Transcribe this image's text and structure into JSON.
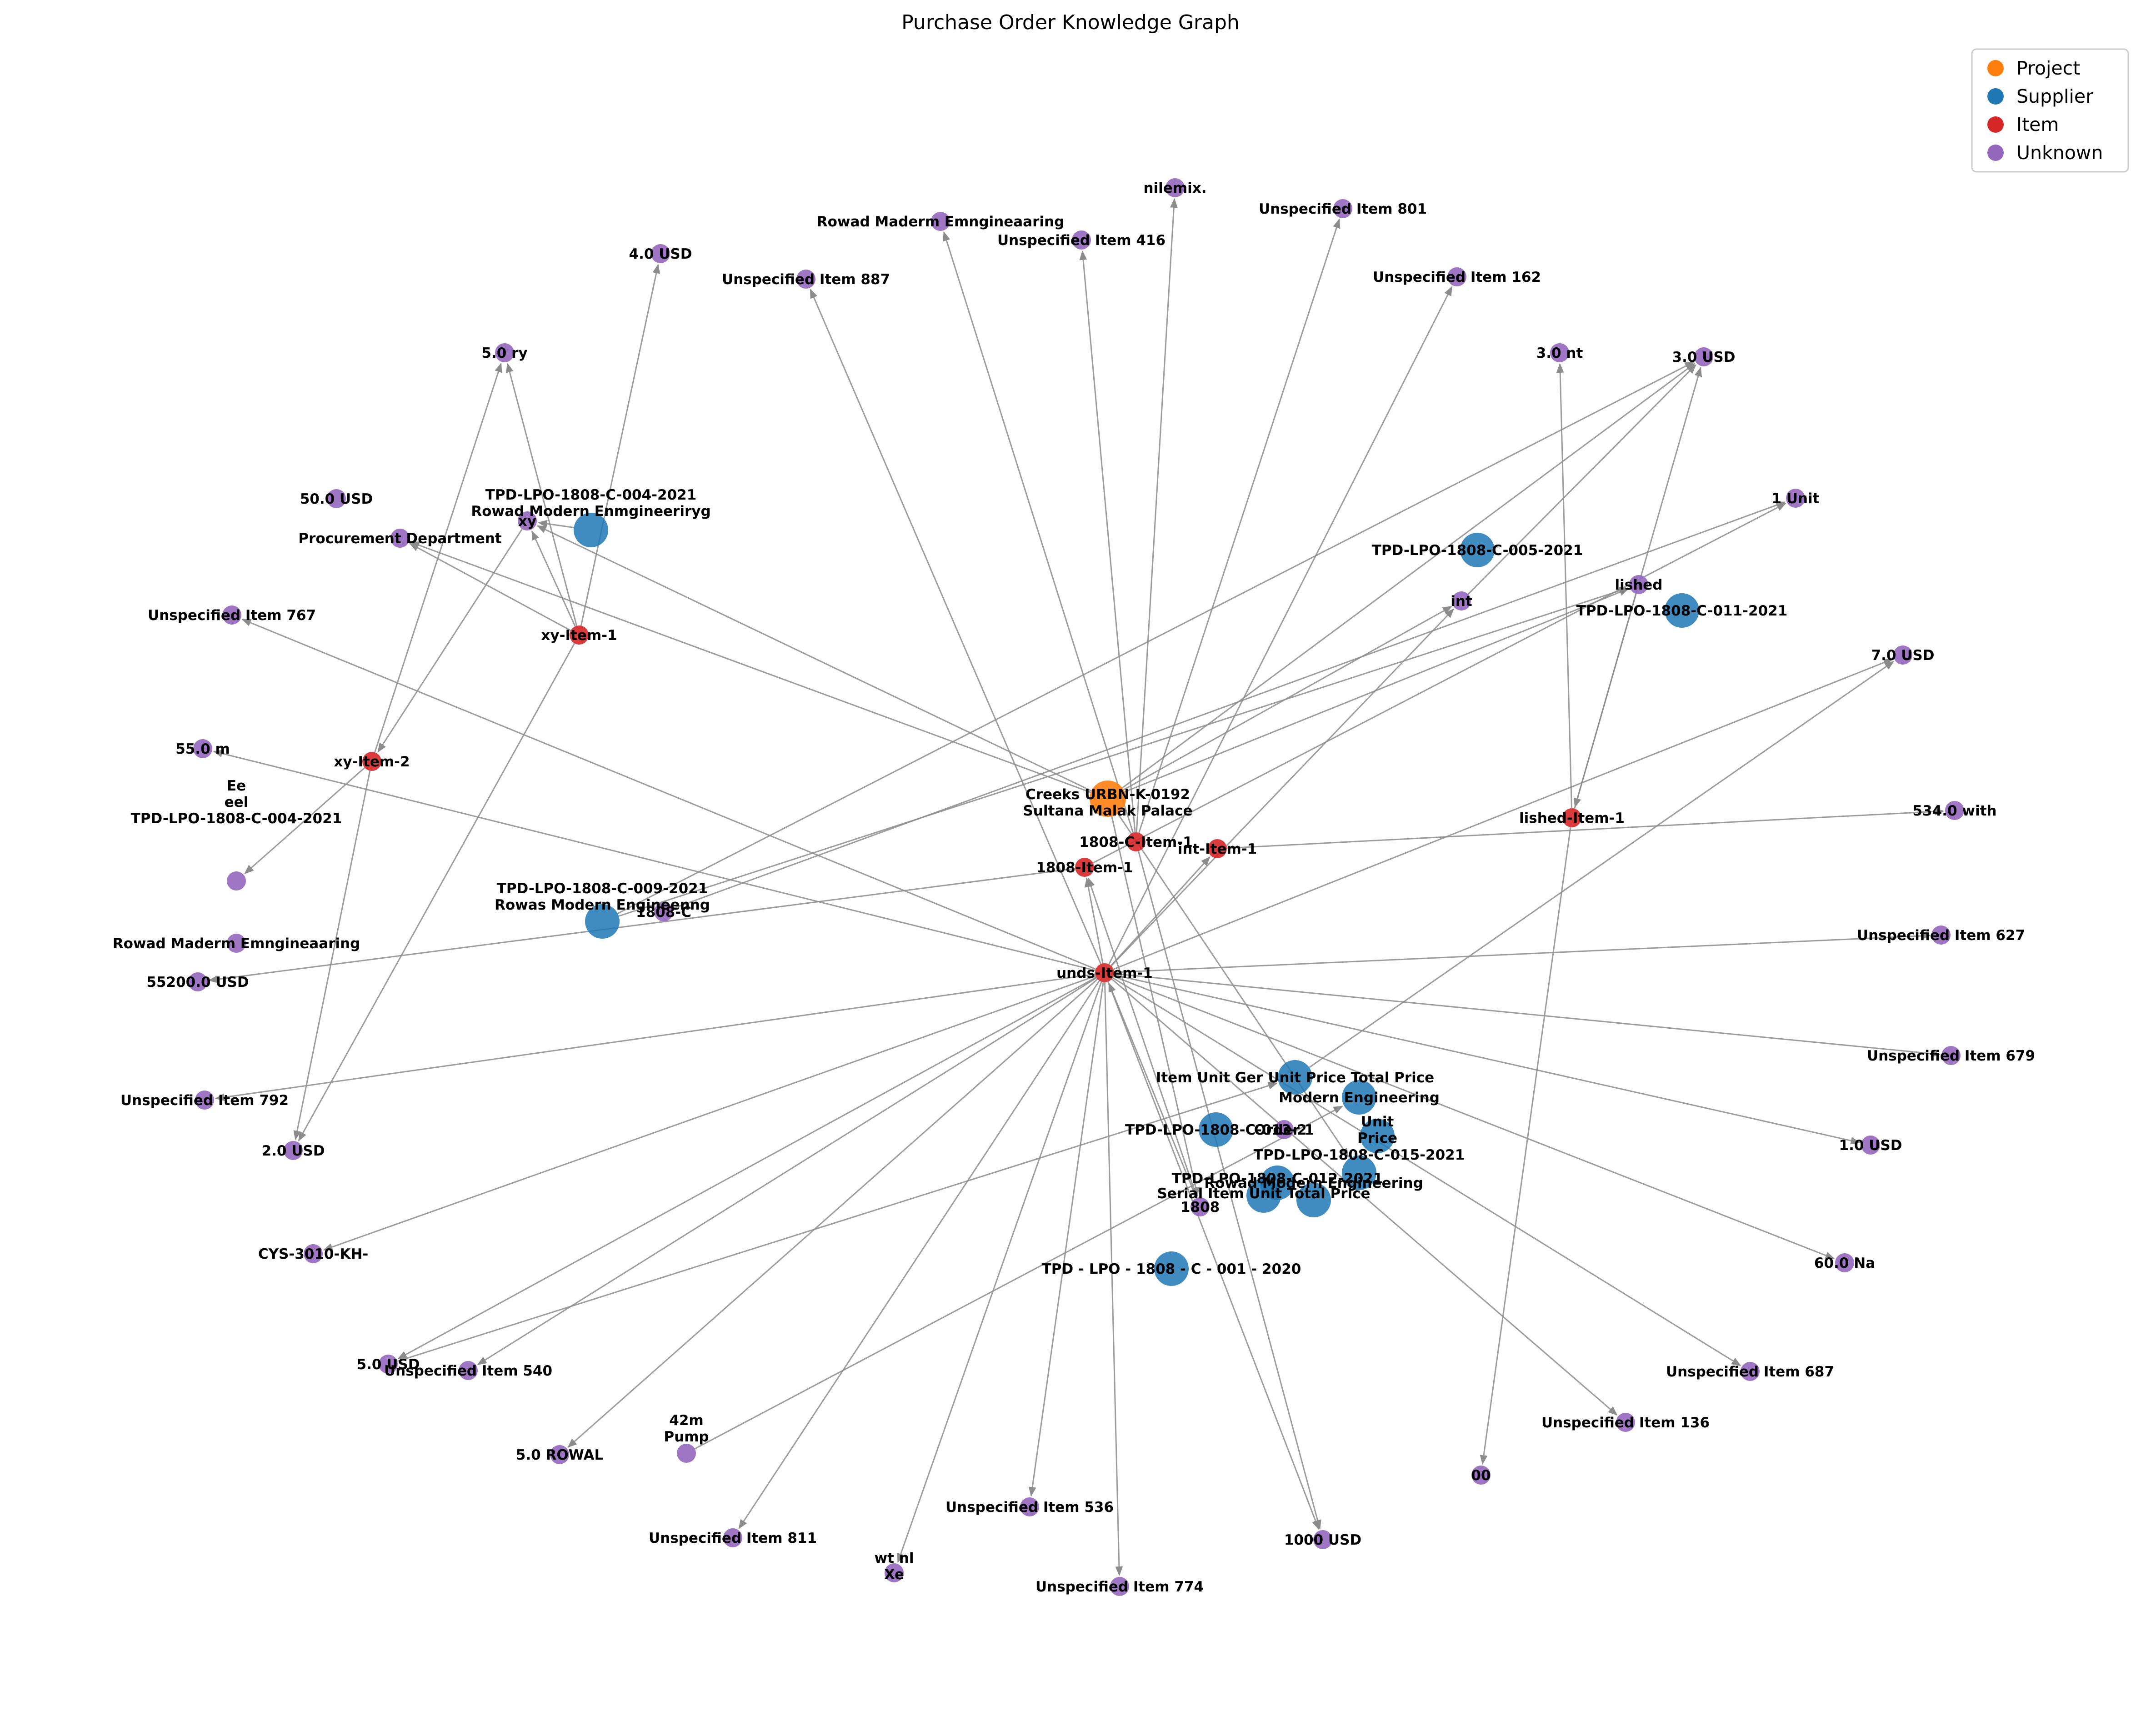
{
  "title": "Purchase Order Knowledge Graph",
  "legend": [
    {
      "key": "Project",
      "label": "Project",
      "color": "#ff7f0e"
    },
    {
      "key": "Supplier",
      "label": "Supplier",
      "color": "#1f77b4"
    },
    {
      "key": "Item",
      "label": "Item",
      "color": "#d62728"
    },
    {
      "key": "Unknown",
      "label": "Unknown",
      "color": "#9467bd"
    }
  ],
  "nodes": [
    {
      "id": "project",
      "type": "Project",
      "label": "Creeks URBN-K-0192\nSultana Malak Palace"
    },
    {
      "id": "s004",
      "type": "Supplier",
      "label": "TPD-LPO-1808-C-004-2021\n\nRowad Modern Enmgineeriryg"
    },
    {
      "id": "s005",
      "type": "Supplier",
      "label": "TPD-LPO-1808-C-005-2021"
    },
    {
      "id": "s011",
      "type": "Supplier",
      "label": "TPD-LPO-1808-C-011-2021"
    },
    {
      "id": "s009",
      "type": "Supplier",
      "label": "TPD-LPO-1808-C-009-2021\n\nRowas Modern Engineenng"
    },
    {
      "id": "sIUG",
      "type": "Supplier",
      "label": "Item Unit Ger Unit Price Total Price"
    },
    {
      "id": "sME",
      "type": "Supplier",
      "label": "Modern Engineering"
    },
    {
      "id": "s013",
      "type": "Supplier",
      "label": "TPD-LPO-1808-C-013-2"
    },
    {
      "id": "sUP",
      "type": "Supplier",
      "label": "Unit\nPrice"
    },
    {
      "id": "s015",
      "type": "Supplier",
      "label": "TPD-LPO-1808-C-015-2021"
    },
    {
      "id": "s012",
      "type": "Supplier",
      "label": "TPD-LPO-1808-C-012-2021"
    },
    {
      "id": "sSI",
      "type": "Supplier",
      "label": "Serial Item Unit Total Price"
    },
    {
      "id": "sRME",
      "type": "Supplier",
      "label": "Rowad Modern Engineering"
    },
    {
      "id": "s001",
      "type": "Supplier",
      "label": "TPD - LPO - 1808 - C - 001 - 2020"
    },
    {
      "id": "iXY1",
      "type": "Item",
      "label": "xy-Item-1"
    },
    {
      "id": "iXY2",
      "type": "Item",
      "label": "xy-Item-2"
    },
    {
      "id": "i1808C",
      "type": "Item",
      "label": "1808-C-Item-1"
    },
    {
      "id": "i1808",
      "type": "Item",
      "label": "1808-Item-1"
    },
    {
      "id": "iINT",
      "type": "Item",
      "label": "int-Item-1"
    },
    {
      "id": "iLISHED",
      "type": "Item",
      "label": "lished-Item-1"
    },
    {
      "id": "iUNDS",
      "type": "Item",
      "label": "unds-Item-1"
    },
    {
      "id": "u_nilemix",
      "type": "Unknown",
      "label": "nilemix."
    },
    {
      "id": "u_801",
      "type": "Unknown",
      "label": "Unspecified Item 801"
    },
    {
      "id": "u_rowadM",
      "type": "Unknown",
      "label": "Rowad Maderm Emngineaaring"
    },
    {
      "id": "u_416",
      "type": "Unknown",
      "label": "Unspecified Item 416"
    },
    {
      "id": "u_887",
      "type": "Unknown",
      "label": "Unspecified Item 887"
    },
    {
      "id": "u_162",
      "type": "Unknown",
      "label": "Unspecified Item 162"
    },
    {
      "id": "u_4usd",
      "type": "Unknown",
      "label": "4.0 USD"
    },
    {
      "id": "u_5ry",
      "type": "Unknown",
      "label": "5.0 ry"
    },
    {
      "id": "u_3nt",
      "type": "Unknown",
      "label": "3.0 nt"
    },
    {
      "id": "u_3usd",
      "type": "Unknown",
      "label": "3.0 USD"
    },
    {
      "id": "u_50usd",
      "type": "Unknown",
      "label": "50.0 USD"
    },
    {
      "id": "u_xy",
      "type": "Unknown",
      "label": "xy"
    },
    {
      "id": "u_proc",
      "type": "Unknown",
      "label": "Procurement Department"
    },
    {
      "id": "u_1unit",
      "type": "Unknown",
      "label": "1 Unit"
    },
    {
      "id": "u_int",
      "type": "Unknown",
      "label": "int"
    },
    {
      "id": "u_lished",
      "type": "Unknown",
      "label": "lished"
    },
    {
      "id": "u_767",
      "type": "Unknown",
      "label": "Unspecified Item 767"
    },
    {
      "id": "u_7usd",
      "type": "Unknown",
      "label": "7.0 USD"
    },
    {
      "id": "u_55m",
      "type": "Unknown",
      "label": "55.0 m"
    },
    {
      "id": "u_534",
      "type": "Unknown",
      "label": "534.0 with"
    },
    {
      "id": "u_eeel",
      "type": "Unknown",
      "label": "Ee\neel\n\n\nTPD-LPO-1808-C-004-2021"
    },
    {
      "id": "u_1808c",
      "type": "Unknown",
      "label": "1808-C"
    },
    {
      "id": "u_rowad2",
      "type": "Unknown",
      "label": "Rowad Maderm Emngineaaring"
    },
    {
      "id": "u_55200",
      "type": "Unknown",
      "label": "55200.0 USD"
    },
    {
      "id": "u_627",
      "type": "Unknown",
      "label": "Unspecified Item 627"
    },
    {
      "id": "u_679",
      "type": "Unknown",
      "label": "Unspecified Item 679"
    },
    {
      "id": "u_792",
      "type": "Unknown",
      "label": "Unspecified Item 792"
    },
    {
      "id": "u_1usd",
      "type": "Unknown",
      "label": "1.0 USD"
    },
    {
      "id": "u_2usd",
      "type": "Unknown",
      "label": "2.0 USD"
    },
    {
      "id": "u_ord1",
      "type": "Unknown",
      "label": "Order 1"
    },
    {
      "id": "u_1808",
      "type": "Unknown",
      "label": "1808"
    },
    {
      "id": "u_60na",
      "type": "Unknown",
      "label": "60.0 Na"
    },
    {
      "id": "u_cys",
      "type": "Unknown",
      "label": "CYS-3010-KH-"
    },
    {
      "id": "u_5usd",
      "type": "Unknown",
      "label": "5.0 USD"
    },
    {
      "id": "u_540",
      "type": "Unknown",
      "label": "Unspecified Item 540"
    },
    {
      "id": "u_687",
      "type": "Unknown",
      "label": "Unspecified Item 687"
    },
    {
      "id": "u_136",
      "type": "Unknown",
      "label": "Unspecified Item 136"
    },
    {
      "id": "u_42m",
      "type": "Unknown",
      "label": "42m\n\nPump"
    },
    {
      "id": "u_5rowal",
      "type": "Unknown",
      "label": "5.0 ROWAL"
    },
    {
      "id": "u_00",
      "type": "Unknown",
      "label": "00"
    },
    {
      "id": "u_536",
      "type": "Unknown",
      "label": "Unspecified Item 536"
    },
    {
      "id": "u_811",
      "type": "Unknown",
      "label": "Unspecified Item 811"
    },
    {
      "id": "u_1000",
      "type": "Unknown",
      "label": "1000 USD"
    },
    {
      "id": "u_wtnl",
      "type": "Unknown",
      "label": "wt nl\nXe"
    },
    {
      "id": "u_774",
      "type": "Unknown",
      "label": "Unspecified Item 774"
    }
  ],
  "edges": [
    [
      "iXY1",
      "u_4usd"
    ],
    [
      "iXY1",
      "u_5ry"
    ],
    [
      "iXY1",
      "u_xy"
    ],
    [
      "iXY1",
      "u_proc"
    ],
    [
      "iXY1",
      "u_2usd"
    ],
    [
      "iXY2",
      "u_5ry"
    ],
    [
      "iXY2",
      "u_eeel"
    ],
    [
      "iXY2",
      "u_2usd"
    ],
    [
      "u_xy",
      "iXY2"
    ],
    [
      "project",
      "u_xy"
    ],
    [
      "project",
      "u_proc"
    ],
    [
      "project",
      "u_3usd"
    ],
    [
      "project",
      "u_lished"
    ],
    [
      "project",
      "u_int"
    ],
    [
      "s009",
      "u_3usd"
    ],
    [
      "s009",
      "u_lished"
    ],
    [
      "i1808C",
      "u_rowadM"
    ],
    [
      "i1808C",
      "u_nilemix"
    ],
    [
      "i1808C",
      "u_416"
    ],
    [
      "i1808C",
      "u_801"
    ],
    [
      "i1808C",
      "u_1000"
    ],
    [
      "i1808",
      "u_1unit"
    ],
    [
      "i1808",
      "u_55200"
    ],
    [
      "iINT",
      "u_534"
    ],
    [
      "u_1808c",
      "u_1unit"
    ],
    [
      "u_int",
      "u_3usd"
    ],
    [
      "iLISHED",
      "u_3nt"
    ],
    [
      "iLISHED",
      "u_3usd"
    ],
    [
      "iLISHED",
      "u_00"
    ],
    [
      "u_lished",
      "iLISHED"
    ],
    [
      "iUNDS",
      "u_887"
    ],
    [
      "iUNDS",
      "u_162"
    ],
    [
      "iUNDS",
      "u_767"
    ],
    [
      "iUNDS",
      "u_55m"
    ],
    [
      "iUNDS",
      "u_792"
    ],
    [
      "iUNDS",
      "u_627"
    ],
    [
      "iUNDS",
      "u_679"
    ],
    [
      "iUNDS",
      "u_1usd"
    ],
    [
      "iUNDS",
      "u_60na"
    ],
    [
      "iUNDS",
      "u_cys"
    ],
    [
      "iUNDS",
      "u_5usd"
    ],
    [
      "iUNDS",
      "u_540"
    ],
    [
      "iUNDS",
      "u_687"
    ],
    [
      "iUNDS",
      "u_136"
    ],
    [
      "iUNDS",
      "u_5rowal"
    ],
    [
      "iUNDS",
      "u_536"
    ],
    [
      "iUNDS",
      "u_811"
    ],
    [
      "iUNDS",
      "u_1000"
    ],
    [
      "iUNDS",
      "u_wtnl"
    ],
    [
      "iUNDS",
      "u_774"
    ],
    [
      "iUNDS",
      "iINT"
    ],
    [
      "iUNDS",
      "u_7usd"
    ],
    [
      "iUNDS",
      "u_int"
    ],
    [
      "iUNDS",
      "i1808"
    ],
    [
      "u_42m",
      "sME"
    ],
    [
      "u_5usd",
      "sIUG"
    ],
    [
      "sIUG",
      "u_7usd"
    ],
    [
      "s004",
      "u_xy"
    ],
    [
      "project",
      "s015"
    ],
    [
      "project",
      "u_1808"
    ],
    [
      "u_1808",
      "iUNDS"
    ],
    [
      "u_1808",
      "i1808"
    ]
  ]
}
